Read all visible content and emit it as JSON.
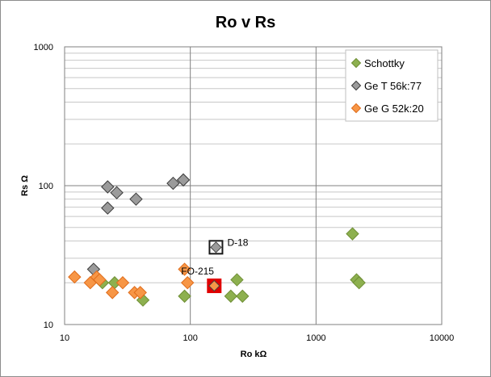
{
  "chart_data": {
    "type": "scatter",
    "title": "Ro v Rs",
    "xlabel": "Ro kΩ",
    "ylabel": "Rs  Ω",
    "xscale": "log",
    "yscale": "log",
    "xlim": [
      10,
      10000
    ],
    "ylim": [
      10,
      1000
    ],
    "xticks": [
      "10",
      "100",
      "1000",
      "10000"
    ],
    "yticks": [
      "10",
      "100",
      "1000"
    ],
    "grid": "major and minor horizontal, major vertical",
    "legend_position": "top-right",
    "series": [
      {
        "name": "Schottky",
        "color": "#8db04f",
        "stroke": "#6f8f35",
        "points": [
          [
            20,
            20
          ],
          [
            25,
            20
          ],
          [
            42,
            15
          ],
          [
            90,
            16
          ],
          [
            210,
            16
          ],
          [
            235,
            21
          ],
          [
            260,
            16
          ],
          [
            1950,
            45
          ],
          [
            2100,
            21
          ],
          [
            2200,
            20
          ]
        ]
      },
      {
        "name": "Ge T 56k:77",
        "color": "#9b9b9b",
        "stroke": "#3a3a3a",
        "points": [
          [
            17,
            25
          ],
          [
            22,
            98
          ],
          [
            22,
            69
          ],
          [
            26,
            89
          ],
          [
            37,
            80
          ],
          [
            73,
            104
          ],
          [
            88,
            110
          ],
          [
            160,
            36
          ]
        ]
      },
      {
        "name": "Ge G 52k:20",
        "color": "#f79646",
        "stroke": "#e06c1a",
        "points": [
          [
            12,
            22
          ],
          [
            16,
            20
          ],
          [
            18,
            22
          ],
          [
            19,
            21
          ],
          [
            24,
            17
          ],
          [
            29,
            20
          ],
          [
            36,
            17
          ],
          [
            40,
            17
          ],
          [
            90,
            25
          ],
          [
            95,
            20
          ],
          [
            155,
            19
          ]
        ]
      }
    ],
    "annotations": [
      {
        "text": "D-18",
        "x": 160,
        "y": 36
      },
      {
        "text": "FO-215",
        "x": 155,
        "y": 19
      }
    ],
    "highlight_markers": [
      {
        "x": 160,
        "y": 36,
        "frame_color": "#1a1a1a",
        "fill": "#ffffff",
        "inner": "#9b9b9b"
      },
      {
        "x": 155,
        "y": 19,
        "frame_color": "#e00000",
        "fill": "#e00000",
        "inner": "#f79646"
      }
    ]
  }
}
